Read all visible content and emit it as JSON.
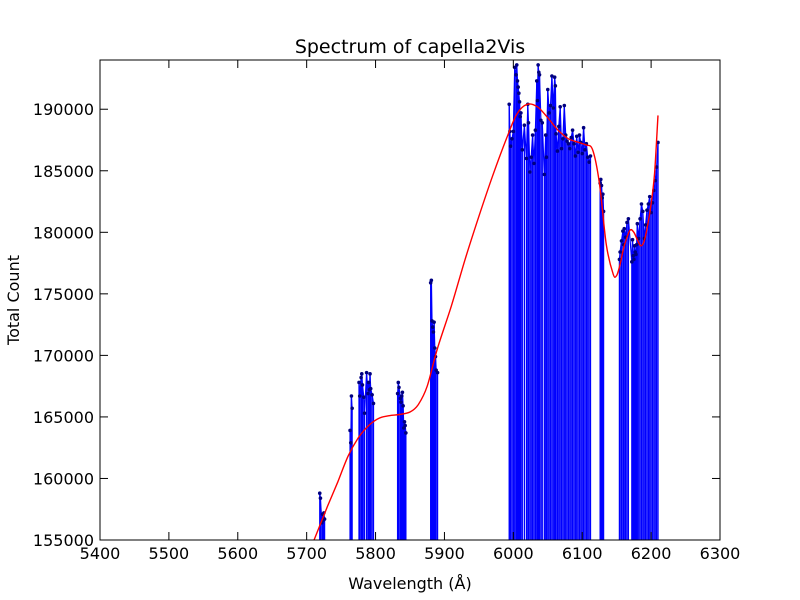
{
  "chart_data": {
    "type": "line",
    "title": "Spectrum of capella2Vis",
    "xlabel": "Wavelength (Å)",
    "ylabel": "Total Count",
    "xlim": [
      5400,
      6300
    ],
    "ylim": [
      155000,
      194000
    ],
    "xticks": [
      5400,
      5500,
      5600,
      5700,
      5800,
      5900,
      6000,
      6100,
      6200,
      6300
    ],
    "xtick_labels": [
      "5400",
      "5500",
      "5600",
      "5700",
      "5800",
      "5900",
      "6000",
      "6100",
      "6200",
      "6300"
    ],
    "yticks": [
      155000,
      160000,
      165000,
      170000,
      175000,
      180000,
      185000,
      190000
    ],
    "ytick_labels": [
      "155000",
      "160000",
      "165000",
      "170000",
      "175000",
      "180000",
      "185000",
      "190000"
    ],
    "grid": false,
    "colors": {
      "spectrum": "#0000ff",
      "fit": "#ff0000",
      "points": "#000080"
    },
    "series": [
      {
        "style": "stem",
        "x": [
          5719,
          5720,
          5722,
          5723,
          5724,
          5725,
          5726,
          5763,
          5764,
          5765,
          5766,
          5776,
          5777,
          5779,
          5780,
          5781,
          5783,
          5784,
          5787,
          5789,
          5790,
          5791,
          5792,
          5793,
          5795,
          5797,
          5832,
          5833,
          5834,
          5836,
          5837,
          5838,
          5839,
          5840,
          5841,
          5842,
          5843,
          5844,
          5880,
          5881,
          5882,
          5883,
          5884,
          5885,
          5886,
          5887,
          5888,
          5890,
          5994,
          5995,
          5996,
          5998,
          6000,
          6002,
          6004,
          6005,
          6006,
          6007,
          6008,
          6009,
          6010,
          6011,
          6013,
          6016,
          6019,
          6021,
          6022,
          6024,
          6026,
          6028,
          6030,
          6032,
          6034,
          6035,
          6036,
          6037,
          6038,
          6040,
          6042,
          6045,
          6047,
          6048,
          6050,
          6052,
          6054,
          6056,
          6058,
          6060,
          6061,
          6062,
          6064,
          6066,
          6068,
          6070,
          6072,
          6074,
          6076,
          6078,
          6080,
          6082,
          6084,
          6086,
          6088,
          6090,
          6092,
          6094,
          6096,
          6098,
          6100,
          6102,
          6104,
          6106,
          6108,
          6110,
          6112,
          6126,
          6127,
          6128,
          6129,
          6130,
          6131,
          6154,
          6155,
          6157,
          6159,
          6160,
          6161,
          6163,
          6165,
          6167,
          6172,
          6173,
          6174,
          6175,
          6176,
          6177,
          6178,
          6179,
          6180,
          6182,
          6184,
          6186,
          6188,
          6190,
          6192,
          6194,
          6196,
          6198,
          6200,
          6202,
          6204,
          6206,
          6208,
          6210
        ],
        "y": [
          158800,
          158400,
          156400,
          157100,
          156600,
          157200,
          156700,
          163900,
          162900,
          166700,
          165700,
          167800,
          166700,
          168200,
          168500,
          167600,
          166600,
          165300,
          168600,
          166900,
          167800,
          167200,
          168500,
          167300,
          166800,
          166100,
          166900,
          167800,
          167400,
          166500,
          166200,
          166700,
          167000,
          165900,
          164100,
          164600,
          164300,
          163700,
          175900,
          176100,
          172800,
          172300,
          171900,
          172700,
          170600,
          169900,
          168800,
          168600,
          190400,
          188200,
          187000,
          187600,
          188200,
          193400,
          192800,
          193600,
          192300,
          191800,
          191300,
          190600,
          189400,
          189700,
          186700,
          188700,
          186000,
          190400,
          188900,
          184900,
          186100,
          187900,
          185600,
          188300,
          192300,
          190700,
          193600,
          193000,
          192800,
          189100,
          188900,
          184700,
          187900,
          186100,
          191600,
          189700,
          190300,
          192700,
          190100,
          192600,
          191900,
          188000,
          186600,
          188600,
          190200,
          186800,
          187600,
          190300,
          187900,
          187400,
          187200,
          186800,
          187700,
          188300,
          187200,
          186200,
          187800,
          186500,
          187900,
          187300,
          186400,
          188500,
          186700,
          187200,
          186100,
          185700,
          186200,
          184000,
          184300,
          183800,
          182800,
          183100,
          181700,
          177800,
          178400,
          179300,
          180100,
          179000,
          180300,
          179600,
          180800,
          181100,
          177600,
          179400,
          178100,
          177800,
          178900,
          178400,
          178200,
          179000,
          180700,
          179500,
          181100,
          182300,
          181700,
          179500,
          180600,
          181800,
          182300,
          182900,
          181600,
          182400,
          183400,
          184200,
          185300,
          187300
        ]
      },
      {
        "style": "line",
        "x": [
          5700,
          5715,
          5730,
          5745,
          5760,
          5775,
          5790,
          5805,
          5820,
          5835,
          5850,
          5862,
          5875,
          5890,
          5910,
          5930,
          5950,
          5970,
          5990,
          6005,
          6020,
          6035,
          6050,
          6065,
          6080,
          6095,
          6105,
          6115,
          6125,
          6135,
          6145,
          6150,
          6155,
          6160,
          6165,
          6170,
          6175,
          6180,
          6185,
          6190,
          6195,
          6200,
          6205,
          6210
        ],
        "y": [
          153500,
          155600,
          157700,
          159700,
          161800,
          163300,
          164300,
          164900,
          165100,
          165200,
          165400,
          166000,
          167500,
          170600,
          174000,
          177800,
          181300,
          184600,
          187600,
          189600,
          190400,
          190200,
          189300,
          188300,
          187600,
          187300,
          187100,
          186700,
          184000,
          179000,
          176600,
          176500,
          177400,
          178700,
          179600,
          180200,
          180000,
          179400,
          178900,
          179300,
          180600,
          182300,
          184800,
          189500
        ]
      }
    ]
  }
}
